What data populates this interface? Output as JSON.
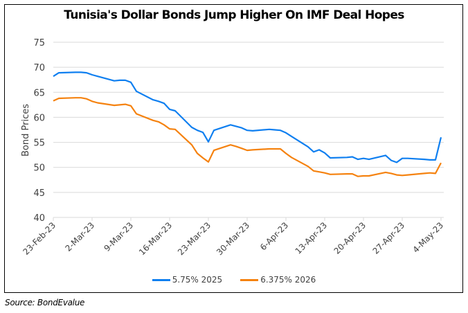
{
  "chart_data": {
    "type": "line",
    "title": "Tunisia's Dollar Bonds Jump Higher On IMF Deal Hopes",
    "xlabel": "",
    "ylabel": "Bond Prices",
    "ylim": [
      40,
      75
    ],
    "yticks": [
      40,
      45,
      50,
      55,
      60,
      65,
      70,
      75
    ],
    "grid": true,
    "legend_position": "bottom",
    "xtick_labels": [
      "23-Feb-23",
      "2-Mar-23",
      "9-Mar-23",
      "16-Mar-23",
      "23-Mar-23",
      "30-Mar-23",
      "6-Apr-23",
      "13-Apr-23",
      "20-Apr-23",
      "27-Apr-23",
      "4-May-23"
    ],
    "x": [
      "2023-02-23",
      "2023-02-24",
      "2023-02-27",
      "2023-02-28",
      "2023-03-01",
      "2023-03-02",
      "2023-03-03",
      "2023-03-06",
      "2023-03-07",
      "2023-03-08",
      "2023-03-09",
      "2023-03-10",
      "2023-03-13",
      "2023-03-14",
      "2023-03-15",
      "2023-03-16",
      "2023-03-17",
      "2023-03-20",
      "2023-03-21",
      "2023-03-22",
      "2023-03-23",
      "2023-03-24",
      "2023-03-27",
      "2023-03-28",
      "2023-03-29",
      "2023-03-30",
      "2023-03-31",
      "2023-04-03",
      "2023-04-04",
      "2023-04-05",
      "2023-04-06",
      "2023-04-07",
      "2023-04-10",
      "2023-04-11",
      "2023-04-12",
      "2023-04-13",
      "2023-04-14",
      "2023-04-17",
      "2023-04-18",
      "2023-04-19",
      "2023-04-20",
      "2023-04-21",
      "2023-04-24",
      "2023-04-25",
      "2023-04-26",
      "2023-04-27",
      "2023-04-28",
      "2023-05-01",
      "2023-05-02",
      "2023-05-03",
      "2023-05-04"
    ],
    "series": [
      {
        "name": "5.75% 2025",
        "color": "#0f7ff0",
        "values": [
          68.2,
          68.9,
          69.0,
          69.0,
          68.9,
          68.5,
          68.2,
          67.3,
          67.4,
          67.4,
          67.0,
          65.2,
          63.5,
          63.2,
          62.8,
          61.6,
          61.3,
          58.0,
          57.4,
          57.0,
          55.1,
          57.4,
          58.5,
          58.2,
          57.9,
          57.4,
          57.3,
          57.6,
          57.5,
          57.4,
          56.9,
          56.2,
          54.1,
          53.1,
          53.5,
          52.9,
          51.9,
          52.0,
          52.1,
          51.6,
          51.8,
          51.6,
          52.4,
          51.4,
          51.0,
          51.8,
          51.8,
          51.6,
          51.5,
          51.5,
          56.0
        ]
      },
      {
        "name": "6.375% 2026",
        "color": "#f5820f",
        "values": [
          63.3,
          63.8,
          63.9,
          63.9,
          63.7,
          63.2,
          62.9,
          62.4,
          62.5,
          62.6,
          62.3,
          60.7,
          59.4,
          59.1,
          58.5,
          57.7,
          57.6,
          54.5,
          52.8,
          51.9,
          51.1,
          53.4,
          54.5,
          54.2,
          53.8,
          53.4,
          53.5,
          53.7,
          53.7,
          53.7,
          52.8,
          52.0,
          50.2,
          49.3,
          49.1,
          48.9,
          48.6,
          48.7,
          48.7,
          48.2,
          48.3,
          48.3,
          49.0,
          48.8,
          48.5,
          48.4,
          48.5,
          48.8,
          48.9,
          48.8,
          50.9
        ]
      }
    ]
  },
  "source": "Source: BondEvalue"
}
